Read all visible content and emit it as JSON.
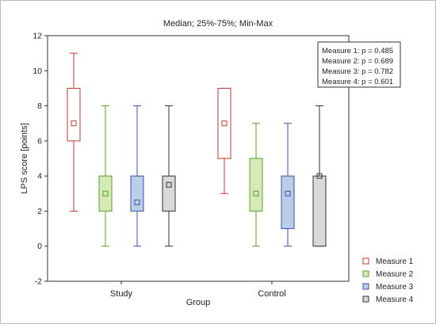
{
  "chart_data": {
    "type": "boxplot",
    "title": "Median; 25%-75%; Min-Max",
    "xlabel": "Group",
    "ylabel": "LPS score [points]",
    "ylim": [
      -2,
      12
    ],
    "yticks": [
      -2,
      0,
      2,
      4,
      6,
      8,
      10,
      12
    ],
    "categories": [
      "Study",
      "Control"
    ],
    "series": [
      {
        "name": "Measure 1",
        "color": "#c0392b",
        "fill": "#ffffff",
        "stats": [
          {
            "min": 2,
            "q1": 6,
            "median": 7,
            "q3": 9,
            "max": 11
          },
          {
            "min": 3,
            "q1": 5,
            "median": 7,
            "q3": 9,
            "max": 9
          }
        ]
      },
      {
        "name": "Measure 2",
        "color": "#5aa02c",
        "fill": "#d6eab8",
        "stats": [
          {
            "min": 0,
            "q1": 2,
            "median": 3,
            "q3": 4,
            "max": 8
          },
          {
            "min": 0,
            "q1": 2,
            "median": 3,
            "q3": 5,
            "max": 7
          }
        ]
      },
      {
        "name": "Measure 3",
        "color": "#3b4fa8",
        "fill": "#b9cfe8",
        "stats": [
          {
            "min": 0,
            "q1": 2,
            "median": 2.5,
            "q3": 4,
            "max": 8
          },
          {
            "min": 0,
            "q1": 1,
            "median": 3,
            "q3": 4,
            "max": 7
          }
        ]
      },
      {
        "name": "Measure 4",
        "color": "#333333",
        "fill": "#d9d9d9",
        "stats": [
          {
            "min": 0,
            "q1": 2,
            "median": 3.5,
            "q3": 4,
            "max": 8
          },
          {
            "min": 0,
            "q1": 0,
            "median": 4,
            "q3": 4,
            "max": 8
          }
        ]
      }
    ],
    "annotation": [
      "Measure 1: p = 0.485",
      "Measure 2: p = 0.689",
      "Measure 3: p = 0.782",
      "Measure 4: p = 0.601"
    ],
    "legend_position": "bottom-right",
    "grid": false
  }
}
